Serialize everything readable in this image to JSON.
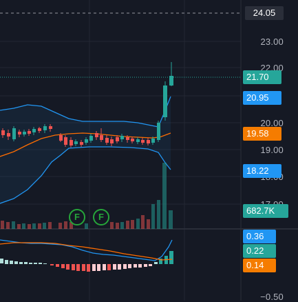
{
  "price_axis": {
    "ticks": [
      "23.00",
      "22.00",
      "20.00",
      "19.00",
      "18.00",
      "17.00"
    ],
    "bottom_tick": "−0.50"
  },
  "tags": {
    "crosshair_price": "24.05",
    "last_price": "21.70",
    "bb_upper": "20.95",
    "bb_basis": "19.58",
    "bb_lower": "18.22",
    "volume": "682.7K",
    "macd": "0.36",
    "histogram": "0.22",
    "signal": "0.14"
  },
  "markers": [
    "F",
    "F"
  ],
  "colors": {
    "background": "#141824",
    "up": "#26a69a",
    "down": "#ef5350",
    "bb_band": "#2196f3",
    "basis": "#ff6d00",
    "tag_blue": "#2196f3",
    "tag_orange": "#f57c00",
    "tag_green": "#26a69a",
    "tag_dark": "#2a2e39"
  },
  "icons": [
    "earnings-marker-icon"
  ]
}
